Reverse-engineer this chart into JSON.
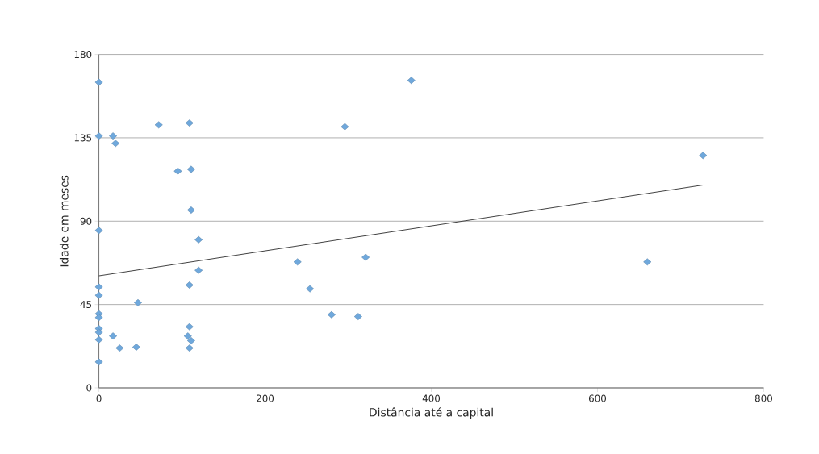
{
  "chart_data": {
    "type": "scatter",
    "xlabel": "Distância até a capital",
    "ylabel": "Idade em meses",
    "xlim": [
      0,
      800
    ],
    "ylim": [
      0,
      180
    ],
    "xticks": [
      0,
      200,
      400,
      600,
      800
    ],
    "yticks": [
      0,
      45,
      90,
      135,
      180
    ],
    "grid": "y",
    "series": [
      {
        "color": "#6fa8dc",
        "marker": "diamond",
        "x": [
          0,
          0,
          17,
          20,
          72,
          109,
          95,
          111,
          111,
          0,
          120,
          120,
          109,
          0,
          0,
          47,
          0,
          0,
          0,
          0,
          0,
          17,
          25,
          45,
          109,
          107,
          111,
          109,
          0,
          376,
          296,
          239,
          321,
          254,
          280,
          312,
          727,
          660
        ],
        "values": [
          165,
          136,
          136,
          132,
          142,
          143,
          117,
          118,
          96,
          85,
          80,
          63.5,
          55.5,
          54.5,
          50,
          46,
          40,
          38,
          32,
          30,
          26,
          28,
          21.5,
          22,
          33,
          28,
          25.5,
          21.5,
          14,
          166,
          141,
          68,
          70.5,
          53.5,
          39.5,
          38.5,
          125.5,
          68
        ]
      },
      {
        "type": "line",
        "color": "#404040",
        "marker": "none",
        "x": [
          0,
          727
        ],
        "values": [
          60.5,
          109.5
        ]
      }
    ]
  }
}
